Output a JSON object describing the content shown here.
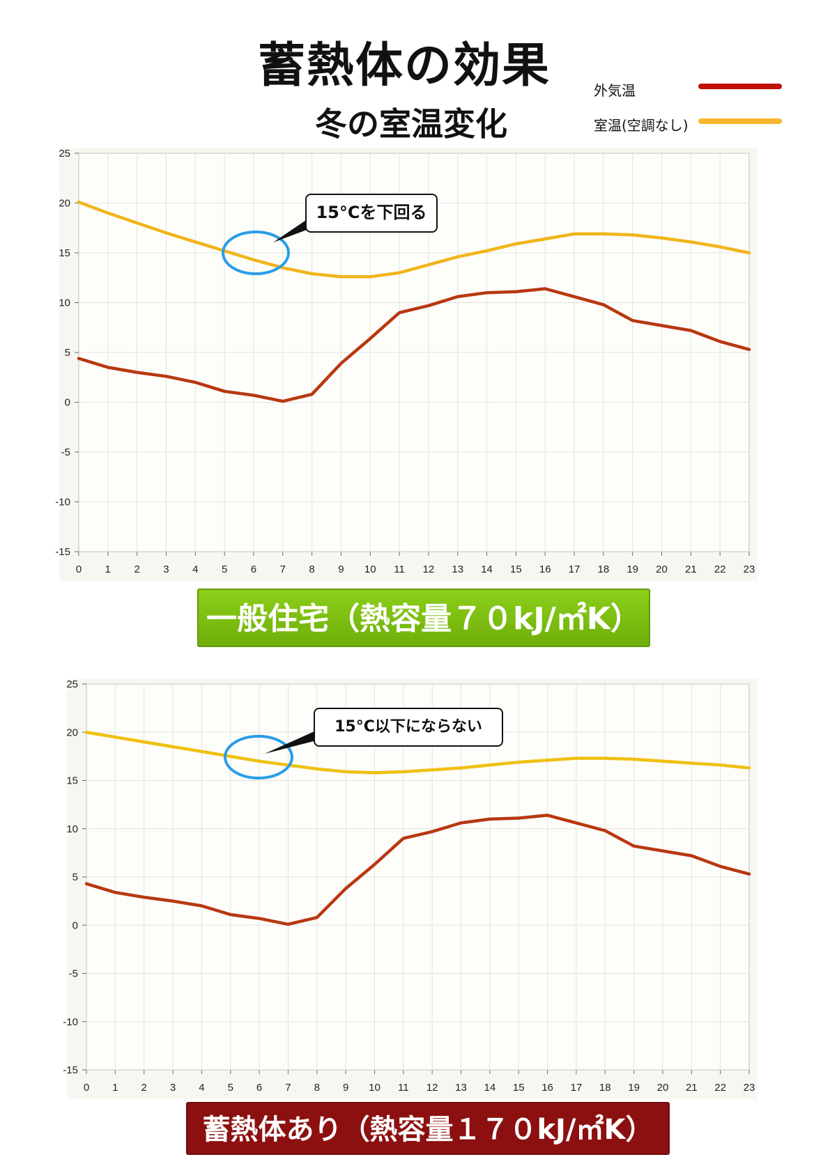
{
  "title": "蓄熱体の効果",
  "subtitle": "冬の室温変化",
  "legend": [
    {
      "label": "外気温",
      "color": "#c0100a"
    },
    {
      "label": "室温(空調なし)",
      "color": "#f6b830"
    }
  ],
  "chart_data": [
    {
      "type": "line",
      "title": "",
      "xlabel": "",
      "ylabel": "",
      "x": [
        0,
        1,
        2,
        3,
        4,
        5,
        6,
        7,
        8,
        9,
        10,
        11,
        12,
        13,
        14,
        15,
        16,
        17,
        18,
        19,
        20,
        21,
        22,
        23
      ],
      "xlim": [
        0,
        23
      ],
      "ylim": [
        -15,
        25
      ],
      "yticks": [
        -15,
        -10,
        -5,
        0,
        5,
        10,
        15,
        20,
        25
      ],
      "grid": true,
      "series": [
        {
          "name": "外気温",
          "color": "#b83810",
          "values": [
            4.4,
            3.5,
            3.0,
            2.6,
            2.0,
            1.1,
            0.7,
            0.1,
            0.8,
            3.9,
            6.4,
            9.0,
            9.7,
            10.6,
            11.0,
            11.1,
            11.4,
            10.6,
            9.8,
            8.2,
            7.7,
            7.2,
            6.1,
            5.3
          ]
        },
        {
          "name": "室温(空調なし)",
          "color": "#f0b51a",
          "values": [
            20.1,
            19.0,
            18.0,
            17.0,
            16.1,
            15.2,
            14.3,
            13.5,
            12.9,
            12.6,
            12.6,
            13.0,
            13.8,
            14.6,
            15.2,
            15.9,
            16.4,
            16.9,
            16.9,
            16.8,
            16.5,
            16.1,
            15.6,
            15.0
          ]
        }
      ],
      "callout": "15°Cを下回る",
      "banner": "一般住宅（熱容量７０kJ/㎡K）"
    },
    {
      "type": "line",
      "title": "",
      "xlabel": "",
      "ylabel": "",
      "x": [
        0,
        1,
        2,
        3,
        4,
        5,
        6,
        7,
        8,
        9,
        10,
        11,
        12,
        13,
        14,
        15,
        16,
        17,
        18,
        19,
        20,
        21,
        22,
        23
      ],
      "xlim": [
        0,
        23
      ],
      "ylim": [
        -15,
        25
      ],
      "yticks": [
        -15,
        -10,
        -5,
        0,
        5,
        10,
        15,
        20,
        25
      ],
      "grid": true,
      "series": [
        {
          "name": "外気温",
          "color": "#b83810",
          "values": [
            4.3,
            3.4,
            2.9,
            2.5,
            2.0,
            1.1,
            0.7,
            0.1,
            0.8,
            3.8,
            6.3,
            9.0,
            9.7,
            10.6,
            11.0,
            11.1,
            11.4,
            10.6,
            9.8,
            8.2,
            7.7,
            7.2,
            6.1,
            5.3
          ]
        },
        {
          "name": "室温(空調なし)",
          "color": "#f0c010",
          "values": [
            20.0,
            19.5,
            19.0,
            18.5,
            18.0,
            17.5,
            17.0,
            16.6,
            16.2,
            15.9,
            15.8,
            15.9,
            16.1,
            16.3,
            16.6,
            16.9,
            17.1,
            17.3,
            17.3,
            17.2,
            17.0,
            16.8,
            16.6,
            16.3
          ]
        }
      ],
      "callout": "15°C以下にならない",
      "banner": "蓄熱体あり（熱容量１７０kJ/㎡K）"
    }
  ]
}
